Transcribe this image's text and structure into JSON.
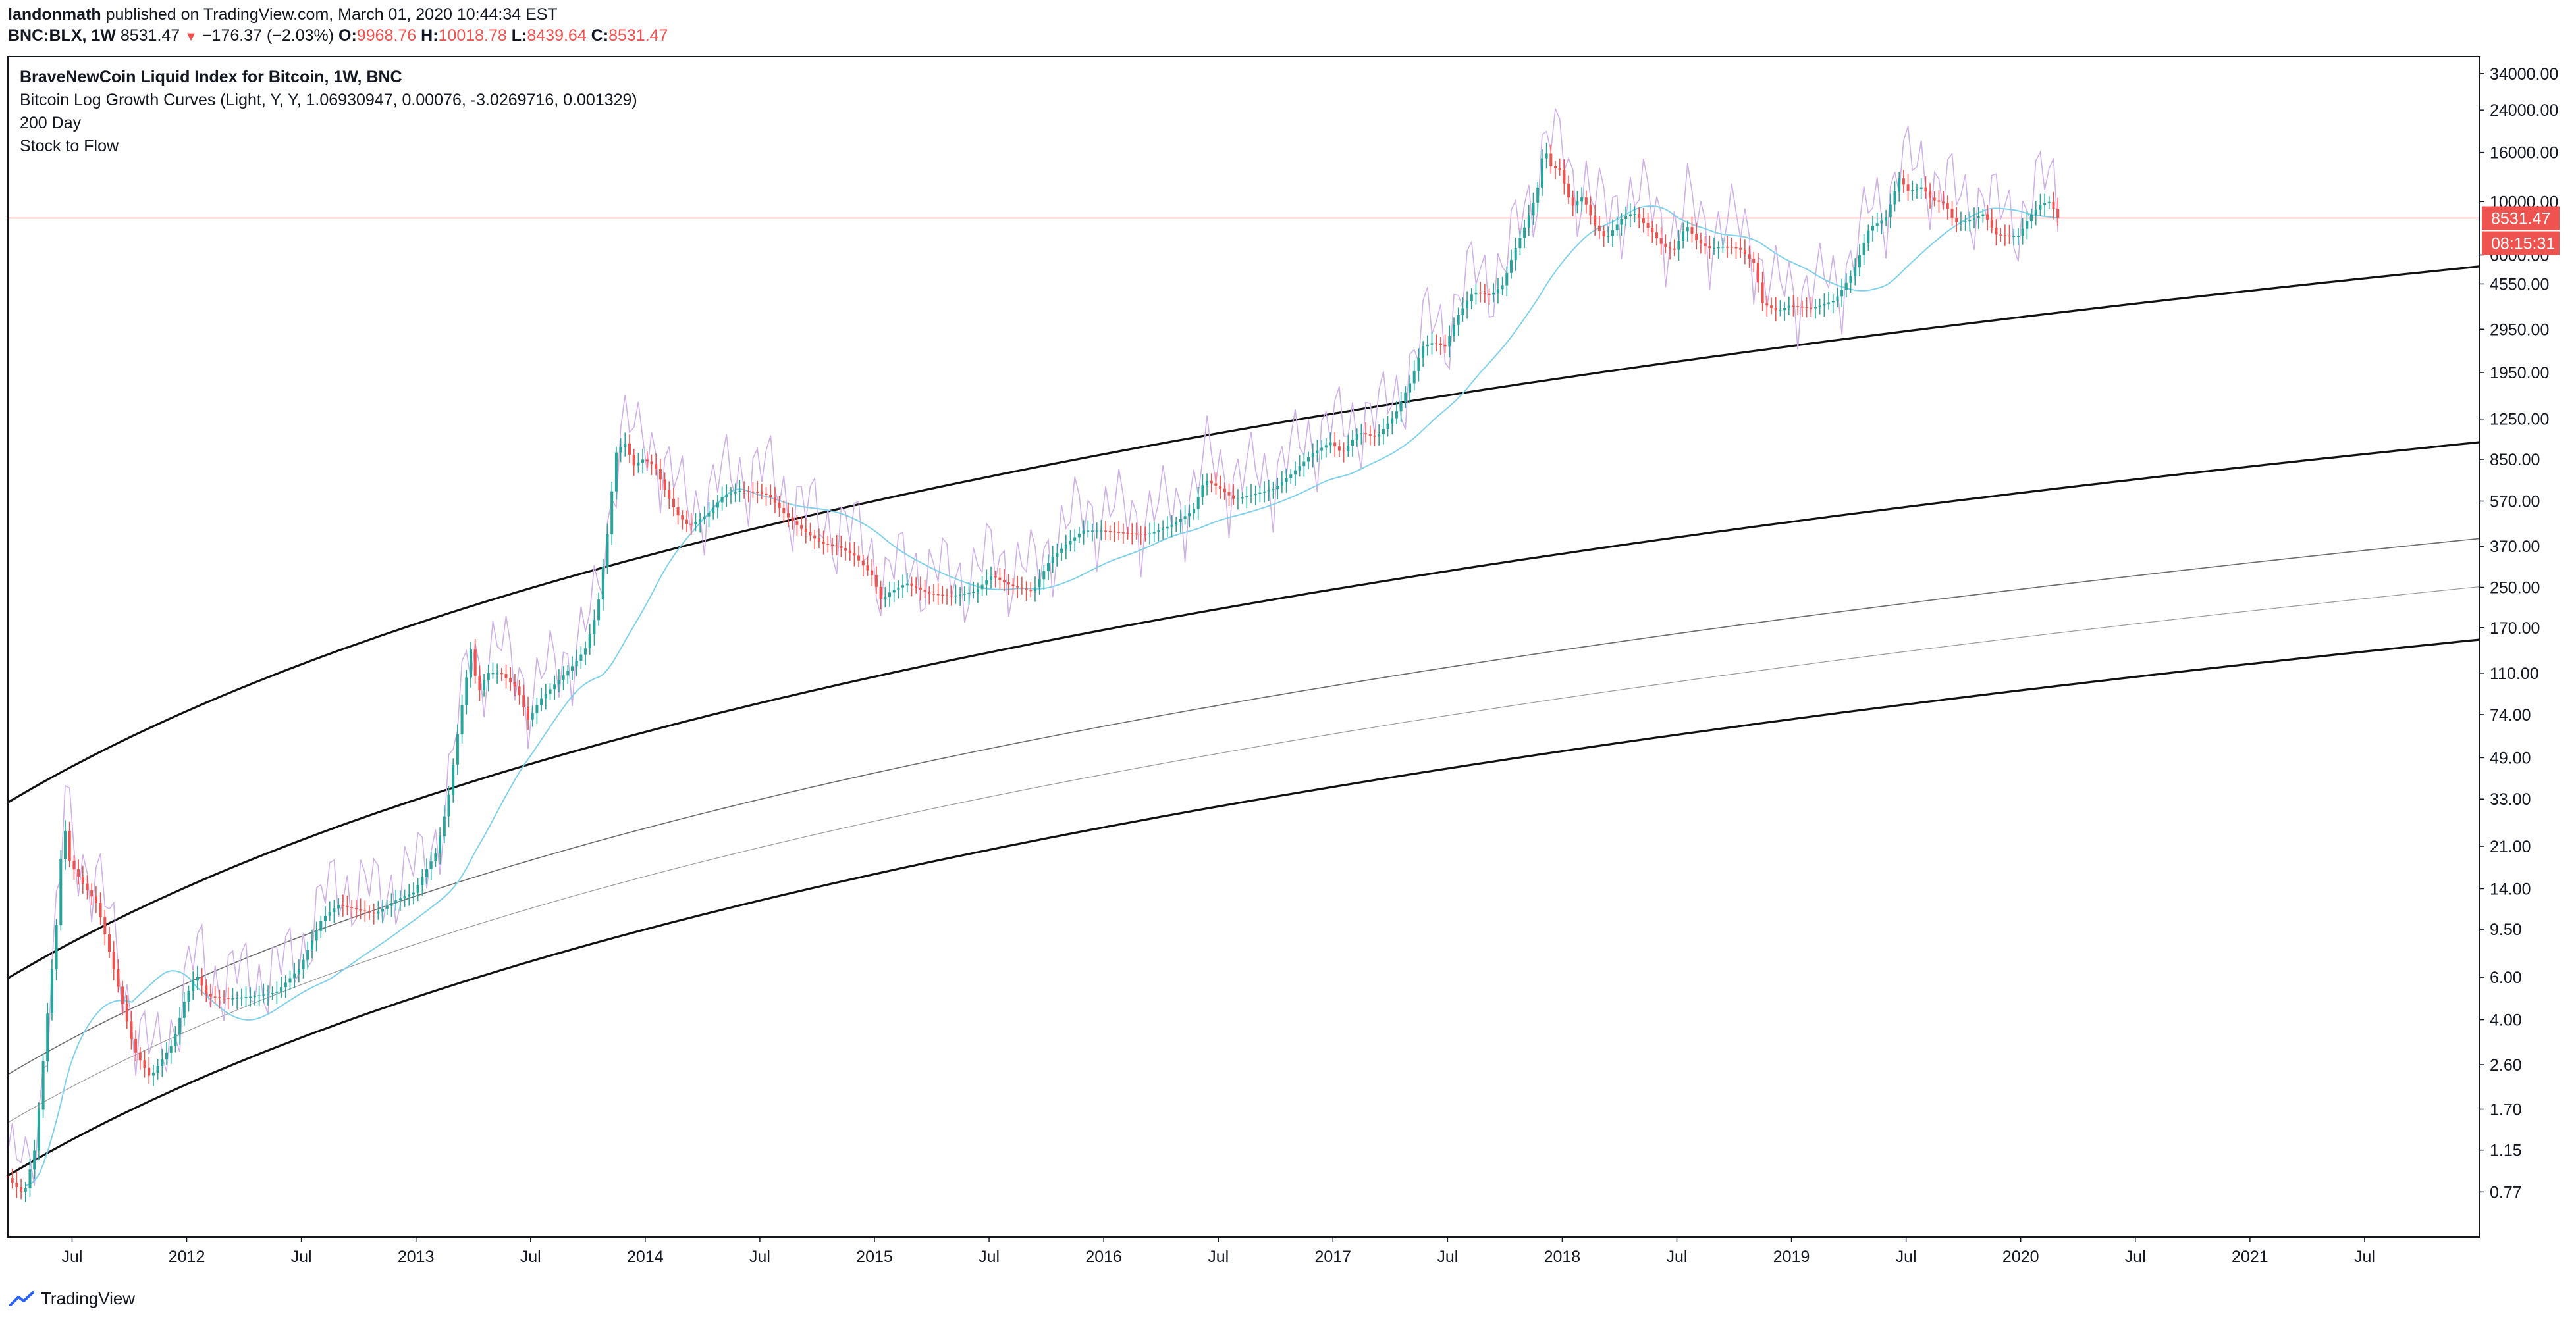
{
  "header": {
    "author": "landonmath",
    "published_text": " published on TradingView.com, March 01, 2020 10:44:34 EST",
    "symbol": "BNC:BLX, 1W",
    "last": "8531.47",
    "change_glyph": "▼",
    "change": "−176.37 (−2.03%)",
    "o_label": "O:",
    "o_value": "9968.76",
    "h_label": "H:",
    "h_value": "10018.78",
    "l_label": "L:",
    "l_value": "8439.64",
    "c_label": "C:",
    "c_value": "8531.47"
  },
  "legend": {
    "title": "BraveNewCoin Liquid Index for Bitcoin, 1W, BNC",
    "indicators": [
      "Bitcoin Log Growth Curves (Light, Y, Y, 1.06930947, 0.00076, -3.0269716, 0.001329)",
      "200 Day",
      "Stock to Flow"
    ]
  },
  "price_badge": {
    "price": "8531.47",
    "countdown": "08:15:31",
    "color": "#ef5350"
  },
  "footer": {
    "brand": "TradingView"
  },
  "chart_data": {
    "type": "candlestick",
    "y_scale": "log",
    "ylim": [
      0.5,
      40000
    ],
    "xlim": [
      2011.22,
      2022.0
    ],
    "y_ticks": [
      {
        "v": 34000,
        "label": "34000.00"
      },
      {
        "v": 24000,
        "label": "24000.00"
      },
      {
        "v": 16000,
        "label": "16000.00"
      },
      {
        "v": 10000,
        "label": "10000.00"
      },
      {
        "v": 6000,
        "label": "6000.00"
      },
      {
        "v": 4550,
        "label": "4550.00"
      },
      {
        "v": 2950,
        "label": "2950.00"
      },
      {
        "v": 1950,
        "label": "1950.00"
      },
      {
        "v": 1250,
        "label": "1250.00"
      },
      {
        "v": 850,
        "label": "850.00"
      },
      {
        "v": 570,
        "label": "570.00"
      },
      {
        "v": 370,
        "label": "370.00"
      },
      {
        "v": 250,
        "label": "250.00"
      },
      {
        "v": 170,
        "label": "170.00"
      },
      {
        "v": 110,
        "label": "110.00"
      },
      {
        "v": 74,
        "label": "74.00"
      },
      {
        "v": 49,
        "label": "49.00"
      },
      {
        "v": 33,
        "label": "33.00"
      },
      {
        "v": 21,
        "label": "21.00"
      },
      {
        "v": 14,
        "label": "14.00"
      },
      {
        "v": 9.5,
        "label": "9.50"
      },
      {
        "v": 6,
        "label": "6.00"
      },
      {
        "v": 4,
        "label": "4.00"
      },
      {
        "v": 2.6,
        "label": "2.60"
      },
      {
        "v": 1.7,
        "label": "1.70"
      },
      {
        "v": 1.15,
        "label": "1.15"
      },
      {
        "v": 0.77,
        "label": "0.77"
      }
    ],
    "x_ticks": [
      {
        "t": 2011.5,
        "label": "Jul"
      },
      {
        "t": 2012.0,
        "label": "2012"
      },
      {
        "t": 2012.5,
        "label": "Jul"
      },
      {
        "t": 2013.0,
        "label": "2013"
      },
      {
        "t": 2013.5,
        "label": "Jul"
      },
      {
        "t": 2014.0,
        "label": "2014"
      },
      {
        "t": 2014.5,
        "label": "Jul"
      },
      {
        "t": 2015.0,
        "label": "2015"
      },
      {
        "t": 2015.5,
        "label": "Jul"
      },
      {
        "t": 2016.0,
        "label": "2016"
      },
      {
        "t": 2016.5,
        "label": "Jul"
      },
      {
        "t": 2017.0,
        "label": "2017"
      },
      {
        "t": 2017.5,
        "label": "Jul"
      },
      {
        "t": 2018.0,
        "label": "2018"
      },
      {
        "t": 2018.5,
        "label": "Jul"
      },
      {
        "t": 2019.0,
        "label": "2019"
      },
      {
        "t": 2019.5,
        "label": "Jul"
      },
      {
        "t": 2020.0,
        "label": "2020"
      },
      {
        "t": 2020.5,
        "label": "Jul"
      },
      {
        "t": 2021.0,
        "label": "2021"
      },
      {
        "t": 2021.5,
        "label": "Jul"
      }
    ],
    "price_path": [
      [
        2011.22,
        0.9
      ],
      [
        2011.3,
        0.75
      ],
      [
        2011.35,
        1.2
      ],
      [
        2011.4,
        4
      ],
      [
        2011.45,
        12
      ],
      [
        2011.47,
        28
      ],
      [
        2011.5,
        18
      ],
      [
        2011.55,
        15
      ],
      [
        2011.62,
        12
      ],
      [
        2011.7,
        6
      ],
      [
        2011.78,
        3
      ],
      [
        2011.85,
        2.3
      ],
      [
        2011.95,
        3.2
      ],
      [
        2012.0,
        4.8
      ],
      [
        2012.05,
        6.2
      ],
      [
        2012.1,
        5.0
      ],
      [
        2012.2,
        4.9
      ],
      [
        2012.3,
        5.0
      ],
      [
        2012.4,
        5.2
      ],
      [
        2012.5,
        6.5
      ],
      [
        2012.6,
        10.5
      ],
      [
        2012.67,
        12
      ],
      [
        2012.75,
        11.5
      ],
      [
        2012.83,
        11
      ],
      [
        2012.92,
        12.5
      ],
      [
        2013.0,
        13.5
      ],
      [
        2013.1,
        20
      ],
      [
        2013.15,
        33
      ],
      [
        2013.2,
        70
      ],
      [
        2013.25,
        140
      ],
      [
        2013.28,
        90
      ],
      [
        2013.32,
        110
      ],
      [
        2013.38,
        110
      ],
      [
        2013.45,
        95
      ],
      [
        2013.5,
        70
      ],
      [
        2013.55,
        85
      ],
      [
        2013.62,
        100
      ],
      [
        2013.7,
        120
      ],
      [
        2013.75,
        140
      ],
      [
        2013.8,
        200
      ],
      [
        2013.85,
        450
      ],
      [
        2013.88,
        900
      ],
      [
        2013.92,
        1000
      ],
      [
        2013.96,
        800
      ],
      [
        2014.0,
        850
      ],
      [
        2014.05,
        800
      ],
      [
        2014.1,
        620
      ],
      [
        2014.15,
        500
      ],
      [
        2014.2,
        450
      ],
      [
        2014.28,
        500
      ],
      [
        2014.35,
        600
      ],
      [
        2014.42,
        630
      ],
      [
        2014.5,
        620
      ],
      [
        2014.55,
        600
      ],
      [
        2014.62,
        500
      ],
      [
        2014.7,
        430
      ],
      [
        2014.78,
        380
      ],
      [
        2014.85,
        370
      ],
      [
        2014.92,
        340
      ],
      [
        2015.0,
        280
      ],
      [
        2015.04,
        220
      ],
      [
        2015.08,
        240
      ],
      [
        2015.15,
        260
      ],
      [
        2015.25,
        235
      ],
      [
        2015.35,
        230
      ],
      [
        2015.45,
        240
      ],
      [
        2015.52,
        280
      ],
      [
        2015.6,
        255
      ],
      [
        2015.7,
        240
      ],
      [
        2015.78,
        330
      ],
      [
        2015.85,
        380
      ],
      [
        2015.92,
        430
      ],
      [
        2016.0,
        430
      ],
      [
        2016.1,
        420
      ],
      [
        2016.2,
        415
      ],
      [
        2016.3,
        450
      ],
      [
        2016.4,
        520
      ],
      [
        2016.45,
        700
      ],
      [
        2016.5,
        660
      ],
      [
        2016.58,
        580
      ],
      [
        2016.67,
        610
      ],
      [
        2016.75,
        640
      ],
      [
        2016.83,
        740
      ],
      [
        2016.92,
        900
      ],
      [
        2017.0,
        1000
      ],
      [
        2017.05,
        900
      ],
      [
        2017.12,
        1100
      ],
      [
        2017.2,
        1050
      ],
      [
        2017.28,
        1300
      ],
      [
        2017.35,
        1800
      ],
      [
        2017.4,
        2500
      ],
      [
        2017.45,
        2600
      ],
      [
        2017.5,
        2500
      ],
      [
        2017.55,
        3300
      ],
      [
        2017.62,
        4200
      ],
      [
        2017.7,
        4100
      ],
      [
        2017.75,
        4500
      ],
      [
        2017.8,
        6200
      ],
      [
        2017.85,
        8000
      ],
      [
        2017.9,
        11000
      ],
      [
        2017.93,
        17000
      ],
      [
        2017.96,
        14000
      ],
      [
        2018.0,
        13500
      ],
      [
        2018.05,
        9500
      ],
      [
        2018.1,
        10500
      ],
      [
        2018.15,
        8000
      ],
      [
        2018.2,
        7000
      ],
      [
        2018.27,
        8500
      ],
      [
        2018.32,
        9000
      ],
      [
        2018.4,
        7500
      ],
      [
        2018.45,
        6500
      ],
      [
        2018.5,
        6300
      ],
      [
        2018.55,
        8000
      ],
      [
        2018.6,
        6800
      ],
      [
        2018.65,
        6400
      ],
      [
        2018.72,
        6500
      ],
      [
        2018.78,
        6400
      ],
      [
        2018.85,
        5500
      ],
      [
        2018.88,
        3800
      ],
      [
        2018.95,
        3500
      ],
      [
        2019.0,
        3700
      ],
      [
        2019.1,
        3600
      ],
      [
        2019.2,
        3900
      ],
      [
        2019.28,
        5100
      ],
      [
        2019.35,
        7800
      ],
      [
        2019.42,
        8500
      ],
      [
        2019.48,
        12500
      ],
      [
        2019.52,
        11000
      ],
      [
        2019.58,
        11500
      ],
      [
        2019.62,
        10200
      ],
      [
        2019.68,
        9800
      ],
      [
        2019.72,
        8200
      ],
      [
        2019.78,
        8300
      ],
      [
        2019.85,
        8900
      ],
      [
        2019.9,
        7300
      ],
      [
        2019.96,
        7200
      ],
      [
        2020.0,
        7200
      ],
      [
        2020.05,
        8700
      ],
      [
        2020.1,
        9800
      ],
      [
        2020.14,
        10000
      ],
      [
        2020.17,
        8530
      ]
    ]
  }
}
